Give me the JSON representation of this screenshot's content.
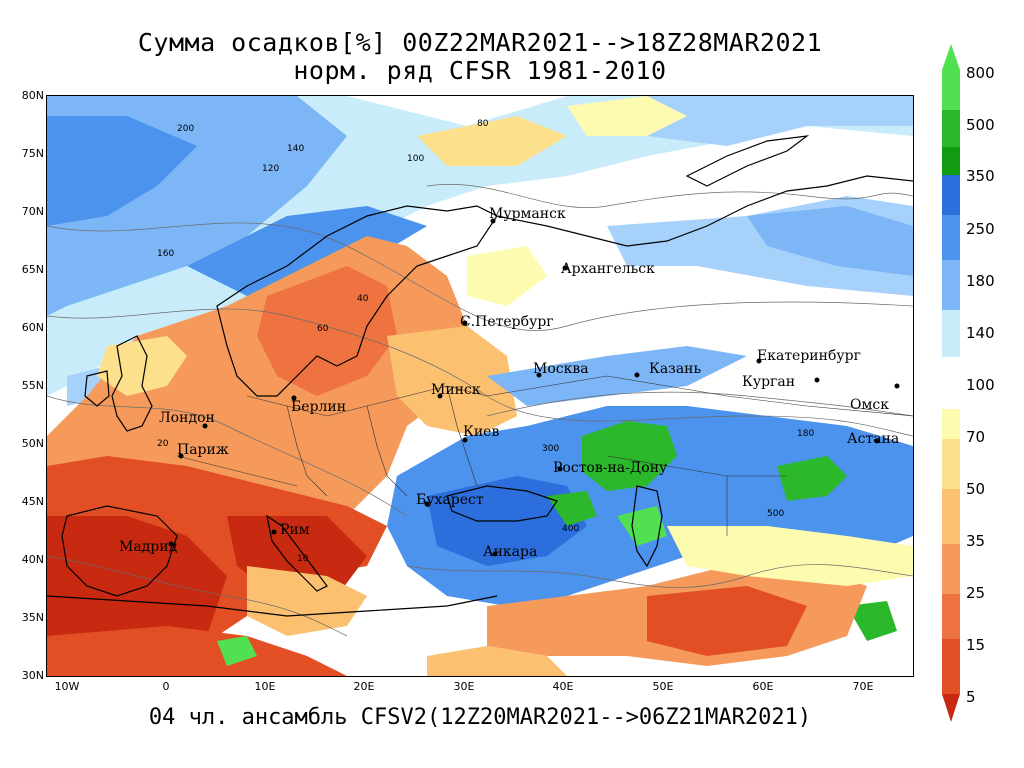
{
  "header": {
    "title_line1": "Сумма осадков[%] 00Z22MAR2021-->18Z28MAR2021",
    "title_line2": "норм. ряд CFSR 1981-2010"
  },
  "footer": {
    "text": "04 чл. ансамбль CFSV2(12Z20MAR2021-->06Z21MAR2021)"
  },
  "map": {
    "lat_ticks": [
      "80N",
      "75N",
      "70N",
      "65N",
      "60N",
      "55N",
      "50N",
      "45N",
      "40N",
      "35N",
      "30N"
    ],
    "lon_ticks": [
      "10W",
      "0",
      "10E",
      "20E",
      "30E",
      "40E",
      "50E",
      "60E",
      "70E"
    ],
    "cities": [
      {
        "name": "Мурманск"
      },
      {
        "name": "Архангельск"
      },
      {
        "name": "С.Петербург"
      },
      {
        "name": "Москва"
      },
      {
        "name": "Казань"
      },
      {
        "name": "Екатеринбург"
      },
      {
        "name": "Курган"
      },
      {
        "name": "Омск"
      },
      {
        "name": "Астана"
      },
      {
        "name": "Минск"
      },
      {
        "name": "Берлин"
      },
      {
        "name": "Лондон"
      },
      {
        "name": "Париж"
      },
      {
        "name": "Киев"
      },
      {
        "name": "Ростов-на-Дону"
      },
      {
        "name": "Бухарест"
      },
      {
        "name": "Рим"
      },
      {
        "name": "Мадрид"
      },
      {
        "name": "Анкара"
      }
    ],
    "contour_labels": [
      "200",
      "140",
      "120",
      "80",
      "100",
      "160",
      "60",
      "40",
      "20",
      "300",
      "400",
      "500",
      "10",
      "180"
    ]
  },
  "colorbar": {
    "labels": [
      "800",
      "500",
      "350",
      "250",
      "180",
      "140",
      "100",
      "70",
      "50",
      "35",
      "25",
      "15",
      "5"
    ],
    "colors": {
      "c800": "#50e050",
      "c500": "#2bb82b",
      "c350": "#119b11",
      "c250": "#2c6fdc",
      "c180": "#4c93ee",
      "c140": "#7db6f6",
      "c120": "#a6d1fb",
      "c100": "#c9ecfb",
      "neutral": "#ffffff",
      "c70": "#fdfbb0",
      "c50": "#fde08c",
      "c35": "#fbc070",
      "c25": "#f59a5a",
      "c15": "#ef7340",
      "c10": "#e24f24",
      "c5": "#c72a10"
    }
  }
}
